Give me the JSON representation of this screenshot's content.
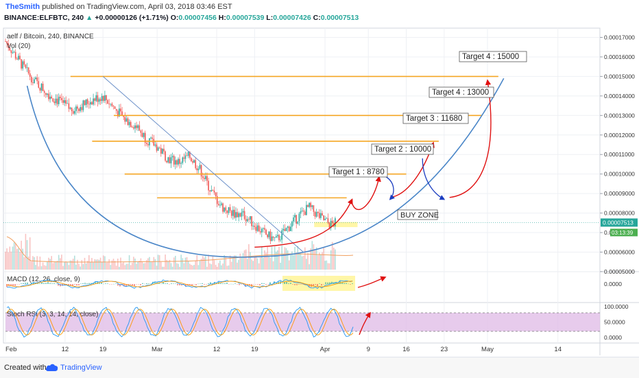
{
  "header": {
    "user": "TheSmith",
    "published_text": "published on TradingView.com, April 03, 2018 03:46 EST",
    "symbol": "BINANCE:ELFBTC, 240",
    "change_arrow": "▲",
    "change": "+0.00000126 (+1.71%)",
    "o_label": "O:",
    "o": "0.00007456",
    "h_label": "H:",
    "h": "0.00007539",
    "l_label": "L:",
    "l": "0.00007426",
    "c_label": "C:",
    "c": "0.00007513"
  },
  "footer": {
    "created": "Created with",
    "brand": "TradingView"
  },
  "colors": {
    "up": "#26a69a",
    "down": "#ef5350",
    "target_line": "#f5a623",
    "arc": "#4a86c8",
    "trend": "#6a8fc8",
    "arrow_red": "#e01010",
    "arrow_blue": "#1a3cc0",
    "buy_zone": "#fff59d",
    "rsi_band": "#e1bee7",
    "macd_zone": "#fff59d",
    "price_tag": "#26a69a",
    "countdown_tag": "#4caf50"
  },
  "chart_data": [
    {
      "type": "candlestick",
      "title": "aelf / Bitcoin, 240, BINANCE",
      "indicator_label": "Vol (20)",
      "x_ticks": [
        "Feb",
        "12",
        "19",
        "Mar",
        "12",
        "19",
        "Apr",
        "9",
        "16",
        "23",
        "May",
        "14"
      ],
      "y_ticks": [
        "0.00017000",
        "0.00016000",
        "0.00015000",
        "0.00014000",
        "0.00013000",
        "0.00012000",
        "0.00011000",
        "0.00010000",
        "0.00009000",
        "0.00008000",
        "0.00007000",
        "0.00006000",
        "0.00005000"
      ],
      "ylim": [
        4.4e-05,
        0.00017474
      ],
      "last_price": "0.00007513",
      "countdown": "03:13:39",
      "price_path": [
        [
          "2018-02-01",
          0.000168
        ],
        [
          "2018-02-03",
          0.00016
        ],
        [
          "2018-02-05",
          0.000152
        ],
        [
          "2018-02-07",
          0.000146
        ],
        [
          "2018-02-09",
          0.000141
        ],
        [
          "2018-02-11",
          0.000137
        ],
        [
          "2018-02-13",
          0.000133
        ],
        [
          "2018-02-15",
          0.000135
        ],
        [
          "2018-02-17",
          0.000138
        ],
        [
          "2018-02-19",
          0.00014
        ],
        [
          "2018-02-21",
          0.000134
        ],
        [
          "2018-02-23",
          0.000128
        ],
        [
          "2018-02-25",
          0.000125
        ],
        [
          "2018-02-27",
          0.000118
        ],
        [
          "2018-03-01",
          0.000114
        ],
        [
          "2018-03-03",
          0.000108
        ],
        [
          "2018-03-05",
          0.000106
        ],
        [
          "2018-03-07",
          0.000109
        ],
        [
          "2018-03-09",
          0.000102
        ],
        [
          "2018-03-11",
          9.1e-05
        ],
        [
          "2018-03-13",
          8.3e-05
        ],
        [
          "2018-03-15",
          8e-05
        ],
        [
          "2018-03-17",
          7.9e-05
        ],
        [
          "2018-03-19",
          7.4e-05
        ],
        [
          "2018-03-21",
          6.9e-05
        ],
        [
          "2018-03-23",
          6.6e-05
        ],
        [
          "2018-03-25",
          7.2e-05
        ],
        [
          "2018-03-27",
          7.8e-05
        ],
        [
          "2018-03-29",
          8.3e-05
        ],
        [
          "2018-03-31",
          7.8e-05
        ],
        [
          "2018-04-02",
          7.4e-05
        ],
        [
          "2018-04-03",
          7.5e-05
        ]
      ],
      "targets": [
        {
          "label": "Target 1 : 8780",
          "price": 8.78e-05,
          "from": "2018-03-01",
          "to": "2018-04-05"
        },
        {
          "label": "Target 2 : 10000",
          "price": 0.0001,
          "from": "2018-02-23",
          "to": "2018-04-16"
        },
        {
          "label": "Target 3 : 11680",
          "price": 0.0001168,
          "from": "2018-02-17",
          "to": "2018-04-22"
        },
        {
          "label": "Target 4 : 13000",
          "price": 0.00013,
          "from": "2018-02-21",
          "to": "2018-04-30"
        },
        {
          "label": "Target 4 : 15000",
          "price": 0.00015,
          "from": "2018-02-13",
          "to": "2018-05-03"
        }
      ],
      "buy_zone": {
        "label": "BUY ZONE",
        "from": "2018-03-30",
        "to": "2018-04-07",
        "low": 7.28e-05,
        "high": 7.54e-05
      }
    },
    {
      "type": "line",
      "title": "MACD (12, 26, close, 9)",
      "y_ticks": [
        "0.0000"
      ]
    },
    {
      "type": "line",
      "title": "Stoch RSI (3, 3, 14, 14, close)",
      "y_ticks": [
        "100.0000",
        "50.0000",
        "0.0000"
      ],
      "ylim": [
        0,
        100
      ],
      "bands": [
        20,
        80
      ]
    }
  ]
}
